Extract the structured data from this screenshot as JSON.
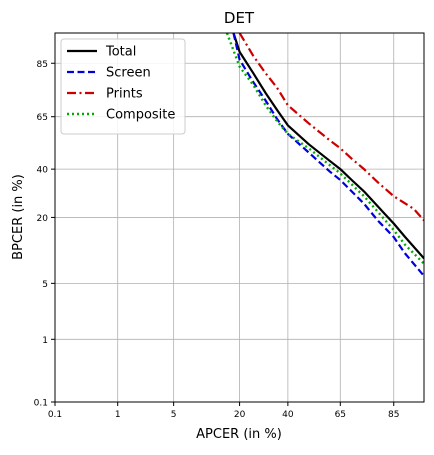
{
  "chart_data": {
    "type": "line",
    "title": "DET",
    "xlabel": "APCER (in %)",
    "ylabel": "BPCER (in %)",
    "x_scale": "probit",
    "y_scale": "probit",
    "xlim": [
      0.1,
      92
    ],
    "ylim": [
      0.1,
      92
    ],
    "x_ticks": [
      0.1,
      1,
      5,
      20,
      40,
      65,
      85
    ],
    "y_ticks": [
      0.1,
      1,
      5,
      20,
      40,
      65,
      85
    ],
    "tick_labels": [
      "0.1",
      "1",
      "5",
      "20",
      "40",
      "65",
      "85"
    ],
    "grid": true,
    "legend_position": "top-left",
    "series": [
      {
        "name": "Total",
        "color": "#000000",
        "style": "solid",
        "points": [
          [
            18,
            92
          ],
          [
            20,
            88
          ],
          [
            25,
            82
          ],
          [
            30,
            75
          ],
          [
            35,
            68
          ],
          [
            40,
            61
          ],
          [
            50,
            52
          ],
          [
            60,
            44
          ],
          [
            65,
            40
          ],
          [
            70,
            35
          ],
          [
            75,
            30
          ],
          [
            80,
            24
          ],
          [
            85,
            18
          ],
          [
            88,
            14
          ],
          [
            92,
            9
          ]
        ]
      },
      {
        "name": "Screen",
        "color": "#0000dd",
        "style": "dashed",
        "points": [
          [
            18,
            92
          ],
          [
            20,
            86
          ],
          [
            25,
            79
          ],
          [
            30,
            72
          ],
          [
            35,
            64
          ],
          [
            40,
            57
          ],
          [
            50,
            48
          ],
          [
            60,
            39
          ],
          [
            65,
            35
          ],
          [
            70,
            30
          ],
          [
            75,
            25
          ],
          [
            80,
            19
          ],
          [
            85,
            14
          ],
          [
            88,
            10
          ],
          [
            92,
            6
          ]
        ]
      },
      {
        "name": "Prints",
        "color": "#cc0000",
        "style": "dashdot",
        "points": [
          [
            20,
            92
          ],
          [
            25,
            87
          ],
          [
            30,
            82
          ],
          [
            35,
            77
          ],
          [
            40,
            70
          ],
          [
            50,
            62
          ],
          [
            60,
            54
          ],
          [
            65,
            50
          ],
          [
            70,
            45
          ],
          [
            75,
            40
          ],
          [
            80,
            34
          ],
          [
            85,
            28
          ],
          [
            90,
            23
          ],
          [
            92,
            19
          ]
        ]
      },
      {
        "name": "Composite",
        "color": "#00aa00",
        "style": "dotted",
        "points": [
          [
            16,
            92
          ],
          [
            20,
            84
          ],
          [
            25,
            78
          ],
          [
            30,
            70
          ],
          [
            35,
            63
          ],
          [
            40,
            57
          ],
          [
            50,
            50
          ],
          [
            60,
            42
          ],
          [
            65,
            38
          ],
          [
            70,
            33
          ],
          [
            75,
            28
          ],
          [
            80,
            22
          ],
          [
            85,
            16
          ],
          [
            88,
            12
          ],
          [
            92,
            8
          ]
        ]
      }
    ]
  }
}
